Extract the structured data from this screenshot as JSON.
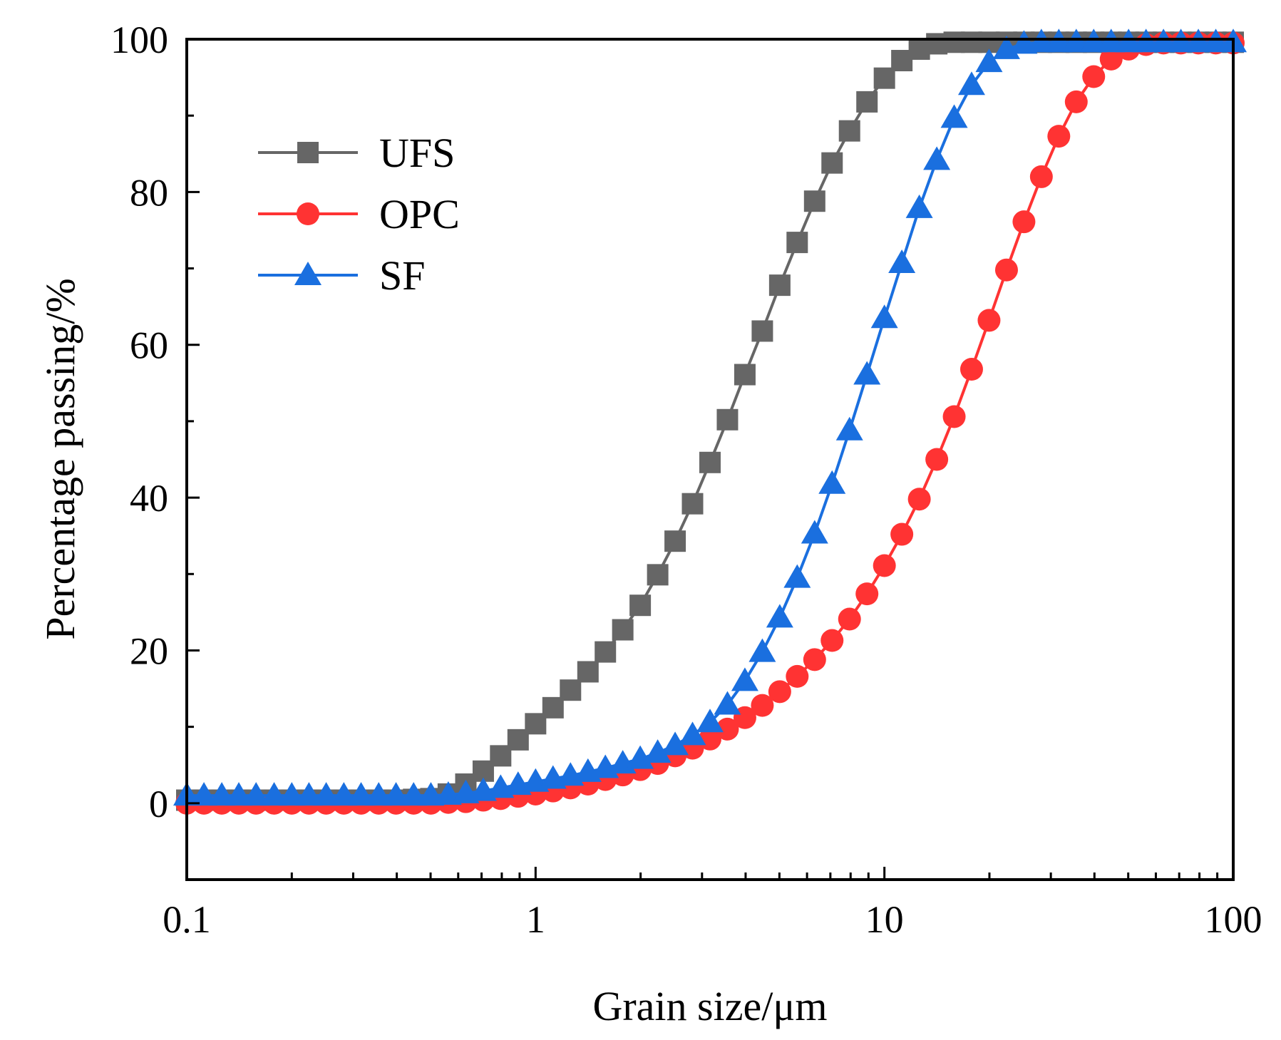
{
  "chart_data": {
    "type": "line",
    "xlabel": "Grain size/μm",
    "ylabel": "Percentage passing/%",
    "xscale": "log",
    "xlim": [
      0.1,
      100
    ],
    "ylim": [
      -10,
      100
    ],
    "x_ticks": [
      0.1,
      1,
      10,
      100
    ],
    "x_tick_labels": [
      "0.1",
      "1",
      "10",
      "100"
    ],
    "y_ticks": [
      0,
      20,
      40,
      60,
      80,
      100
    ],
    "y_tick_labels": [
      "0",
      "20",
      "40",
      "60",
      "80",
      "100"
    ],
    "y_minor_ticks": [
      -10,
      10,
      30,
      50,
      70,
      90
    ],
    "grid": false,
    "legend_position": "top-left",
    "series": [
      {
        "name": "UFS",
        "color": "#666666",
        "marker": "square",
        "x": [
          0.1,
          0.112,
          0.126,
          0.141,
          0.158,
          0.178,
          0.2,
          0.224,
          0.251,
          0.282,
          0.316,
          0.355,
          0.398,
          0.447,
          0.501,
          0.562,
          0.631,
          0.708,
          0.794,
          0.891,
          1.0,
          1.122,
          1.259,
          1.413,
          1.585,
          1.778,
          1.995,
          2.239,
          2.512,
          2.818,
          3.162,
          3.548,
          3.981,
          4.467,
          5.012,
          5.623,
          6.31,
          7.079,
          7.943,
          8.913,
          10.0,
          11.22,
          12.59,
          14.13,
          15.85,
          17.78,
          19.95,
          22.39,
          25.12,
          28.18,
          31.62,
          35.48,
          39.81,
          44.67,
          50.12,
          56.23,
          63.1,
          70.79,
          79.43,
          89.13,
          100.0
        ],
        "y": [
          0.4,
          0.4,
          0.4,
          0.4,
          0.4,
          0.4,
          0.4,
          0.4,
          0.4,
          0.4,
          0.4,
          0.4,
          0.4,
          0.5,
          0.6,
          1.2,
          2.5,
          4.2,
          6.2,
          8.3,
          10.4,
          12.5,
          14.8,
          17.2,
          19.8,
          22.7,
          25.9,
          29.9,
          34.3,
          39.2,
          44.6,
          50.2,
          56.1,
          61.8,
          67.8,
          73.4,
          78.8,
          83.8,
          88.0,
          91.8,
          94.9,
          97.2,
          98.7,
          99.4,
          99.6,
          99.6,
          99.6,
          99.6,
          99.6,
          99.6,
          99.6,
          99.6,
          99.6,
          99.6,
          99.6,
          99.6,
          99.6,
          99.6,
          99.6,
          99.6,
          99.6
        ]
      },
      {
        "name": "OPC",
        "color": "#ff3333",
        "marker": "circle",
        "x": [
          0.1,
          0.112,
          0.126,
          0.141,
          0.158,
          0.178,
          0.2,
          0.224,
          0.251,
          0.282,
          0.316,
          0.355,
          0.398,
          0.447,
          0.501,
          0.562,
          0.631,
          0.708,
          0.794,
          0.891,
          1.0,
          1.122,
          1.259,
          1.413,
          1.585,
          1.778,
          1.995,
          2.239,
          2.512,
          2.818,
          3.162,
          3.548,
          3.981,
          4.467,
          5.012,
          5.623,
          6.31,
          7.079,
          7.943,
          8.913,
          10.0,
          11.22,
          12.59,
          14.13,
          15.85,
          17.78,
          19.95,
          22.39,
          25.12,
          28.18,
          31.62,
          35.48,
          39.81,
          44.67,
          50.12,
          56.23,
          63.1,
          70.79,
          79.43,
          89.13,
          100.0
        ],
        "y": [
          0.0,
          0.0,
          0.0,
          0.0,
          0.0,
          0.0,
          0.0,
          0.0,
          0.0,
          0.0,
          0.0,
          0.0,
          0.0,
          0.0,
          0.0,
          0.1,
          0.2,
          0.4,
          0.6,
          0.9,
          1.2,
          1.6,
          2.0,
          2.5,
          3.1,
          3.7,
          4.4,
          5.2,
          6.2,
          7.2,
          8.4,
          9.7,
          11.2,
          12.8,
          14.6,
          16.6,
          18.8,
          21.3,
          24.1,
          27.4,
          31.1,
          35.2,
          39.8,
          45.0,
          50.6,
          56.8,
          63.2,
          69.8,
          76.1,
          82.0,
          87.3,
          91.8,
          95.1,
          97.4,
          98.7,
          99.3,
          99.5,
          99.5,
          99.5,
          99.5,
          99.5
        ]
      },
      {
        "name": "SF",
        "color": "#1a6fdf",
        "marker": "triangle",
        "x": [
          0.1,
          0.112,
          0.126,
          0.141,
          0.158,
          0.178,
          0.2,
          0.224,
          0.251,
          0.282,
          0.316,
          0.355,
          0.398,
          0.447,
          0.501,
          0.562,
          0.631,
          0.708,
          0.794,
          0.891,
          1.0,
          1.122,
          1.259,
          1.413,
          1.585,
          1.778,
          1.995,
          2.239,
          2.512,
          2.818,
          3.162,
          3.548,
          3.981,
          4.467,
          5.012,
          5.623,
          6.31,
          7.079,
          7.943,
          8.913,
          10.0,
          11.22,
          12.59,
          14.13,
          15.85,
          17.78,
          19.95,
          22.39,
          25.12,
          28.18,
          31.62,
          35.48,
          39.81,
          44.67,
          50.12,
          56.23,
          63.1,
          70.79,
          79.43,
          89.13,
          100.0
        ],
        "y": [
          1.0,
          1.0,
          1.0,
          1.0,
          1.0,
          1.0,
          1.0,
          1.0,
          1.0,
          1.0,
          1.0,
          1.0,
          1.0,
          1.0,
          1.0,
          1.1,
          1.3,
          1.6,
          2.0,
          2.4,
          2.8,
          3.2,
          3.6,
          4.1,
          4.6,
          5.2,
          5.8,
          6.6,
          7.6,
          8.9,
          10.6,
          12.9,
          16.0,
          19.8,
          24.3,
          29.5,
          35.3,
          41.8,
          48.8,
          56.1,
          63.5,
          70.7,
          77.9,
          84.2,
          89.7,
          94.0,
          97.0,
          98.7,
          99.4,
          99.6,
          99.6,
          99.6,
          99.6,
          99.6,
          99.6,
          99.6,
          99.6,
          99.6,
          99.6,
          99.6,
          99.6
        ]
      }
    ]
  }
}
